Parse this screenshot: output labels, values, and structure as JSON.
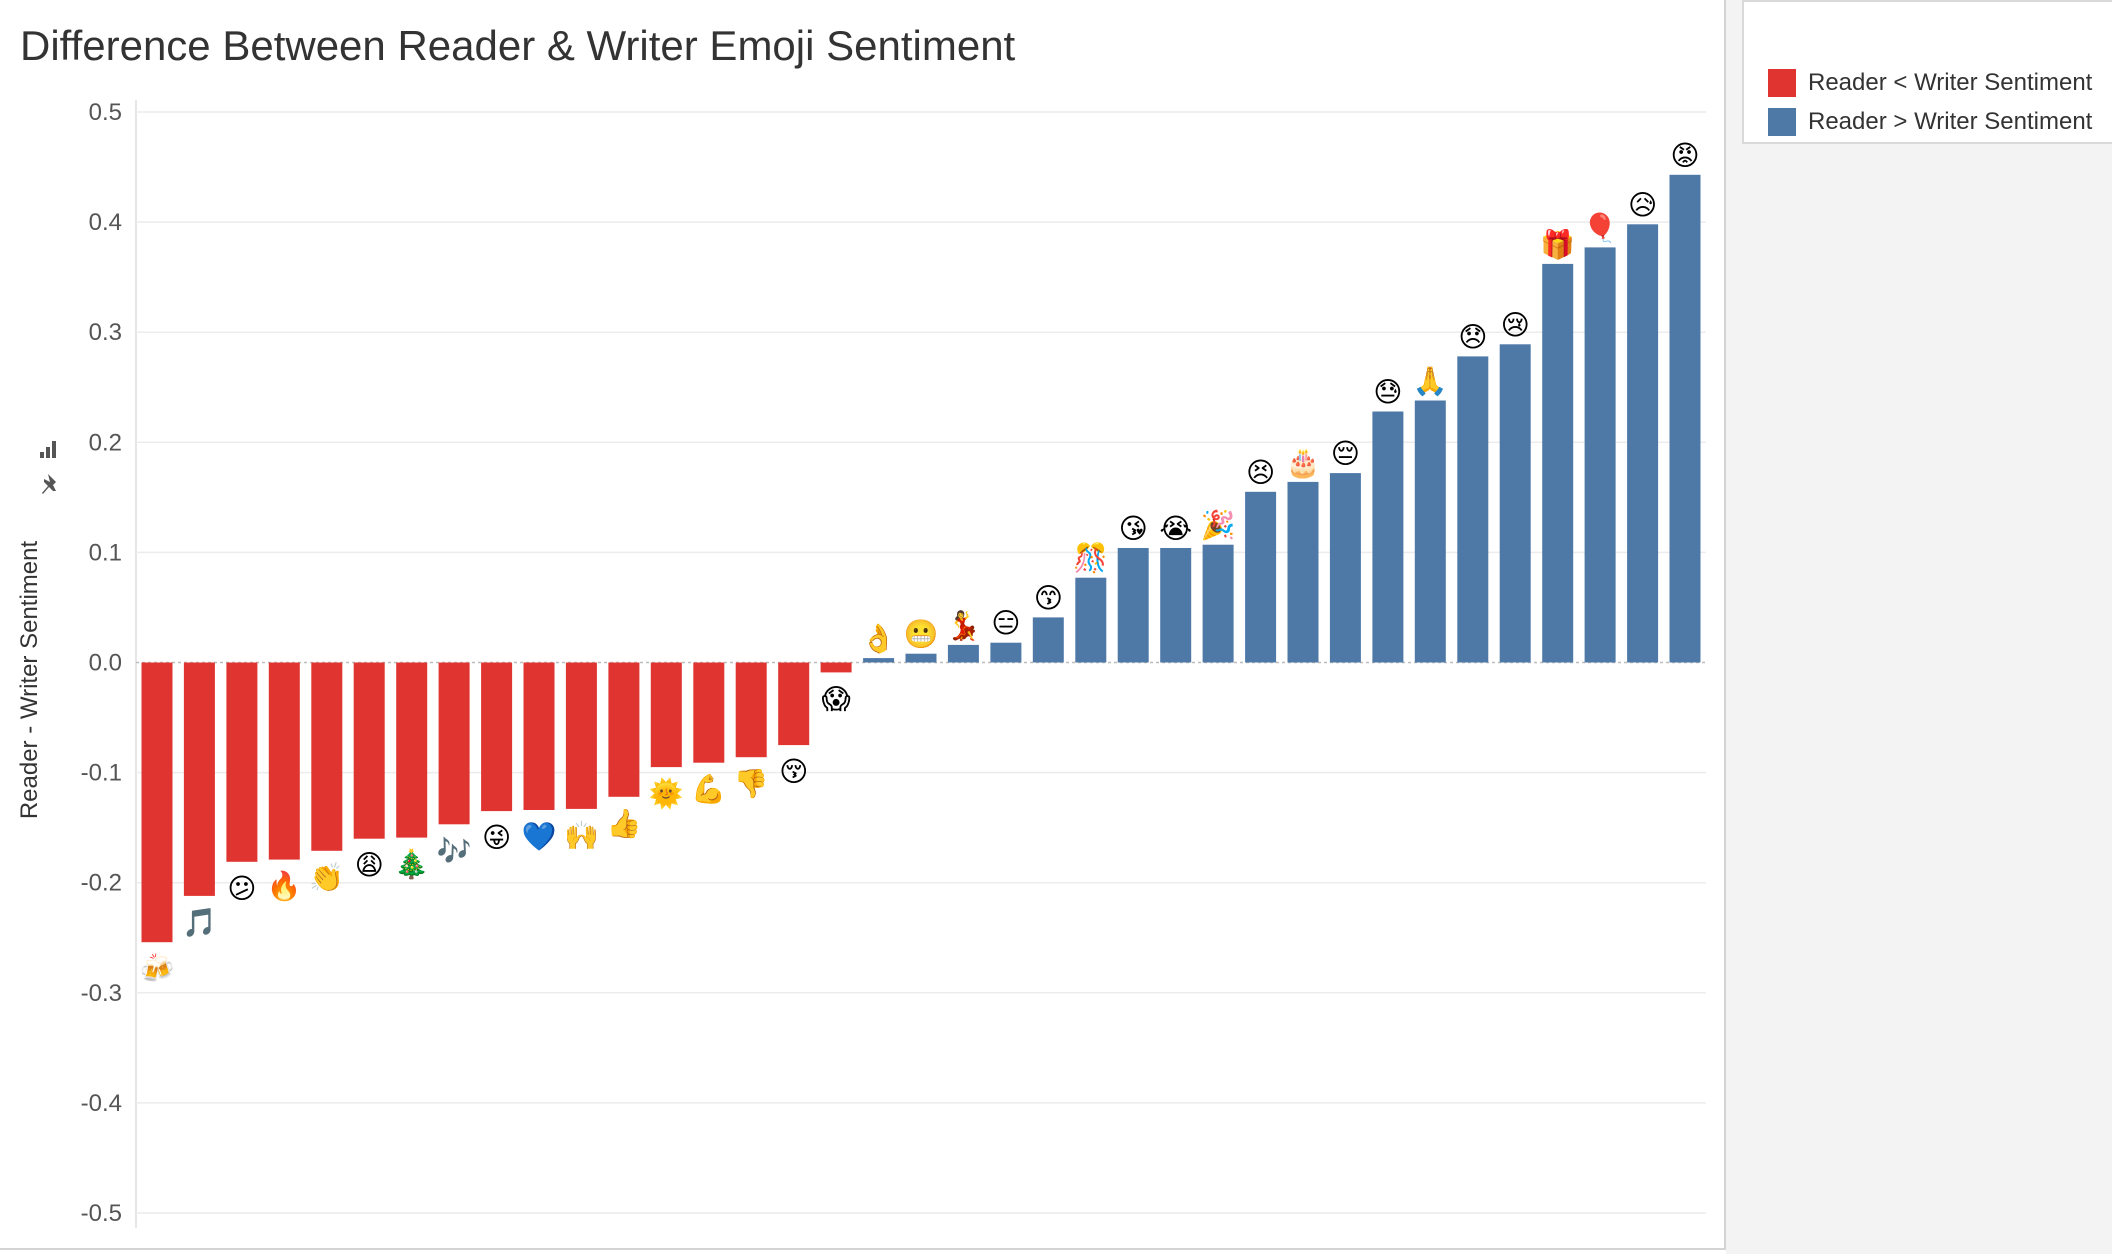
{
  "chart_data": {
    "type": "bar",
    "title": "Difference Between Reader & Writer Emoji Sentiment",
    "xlabel": "",
    "ylabel": "Reader - Writer Sentiment",
    "ylim": [
      -0.5,
      0.5
    ],
    "yticks": [
      "0.5",
      "0.4",
      "0.3",
      "0.2",
      "0.1",
      "0.0",
      "-0.1",
      "-0.2",
      "-0.3",
      "-0.4",
      "-0.5"
    ],
    "grid": true,
    "legend": {
      "position": "top-right",
      "entries": [
        {
          "label": "Reader < Writer Sentiment",
          "color": "#e03431"
        },
        {
          "label": "Reader > Writer Sentiment",
          "color": "#4e79a7"
        }
      ]
    },
    "categories": [
      "🍻",
      "🎵",
      "😕",
      "🔥",
      "👏",
      "😩",
      "🎄",
      "🎶",
      "😜",
      "💙",
      "🙌",
      "👍",
      "🌞",
      "💪",
      "👎",
      "😚",
      "😱",
      "👌",
      "😬",
      "💃",
      "😑",
      "😙",
      "🎊",
      "😘",
      "😭",
      "🎉",
      "😣",
      "🎂",
      "😔",
      "😓",
      "🙏",
      "😞",
      "😢",
      "🎁",
      "🎈",
      "😥",
      "😡"
    ],
    "values": [
      -0.254,
      -0.212,
      -0.181,
      -0.179,
      -0.171,
      -0.16,
      -0.159,
      -0.147,
      -0.135,
      -0.134,
      -0.133,
      -0.122,
      -0.095,
      -0.091,
      -0.086,
      -0.075,
      -0.009,
      0.004,
      0.008,
      0.016,
      0.018,
      0.041,
      0.077,
      0.104,
      0.104,
      0.107,
      0.155,
      0.164,
      0.172,
      0.228,
      0.238,
      0.278,
      0.289,
      0.362,
      0.377,
      0.398,
      0.443
    ],
    "colors": {
      "negative": "#e03431",
      "positive": "#4e79a7"
    }
  }
}
